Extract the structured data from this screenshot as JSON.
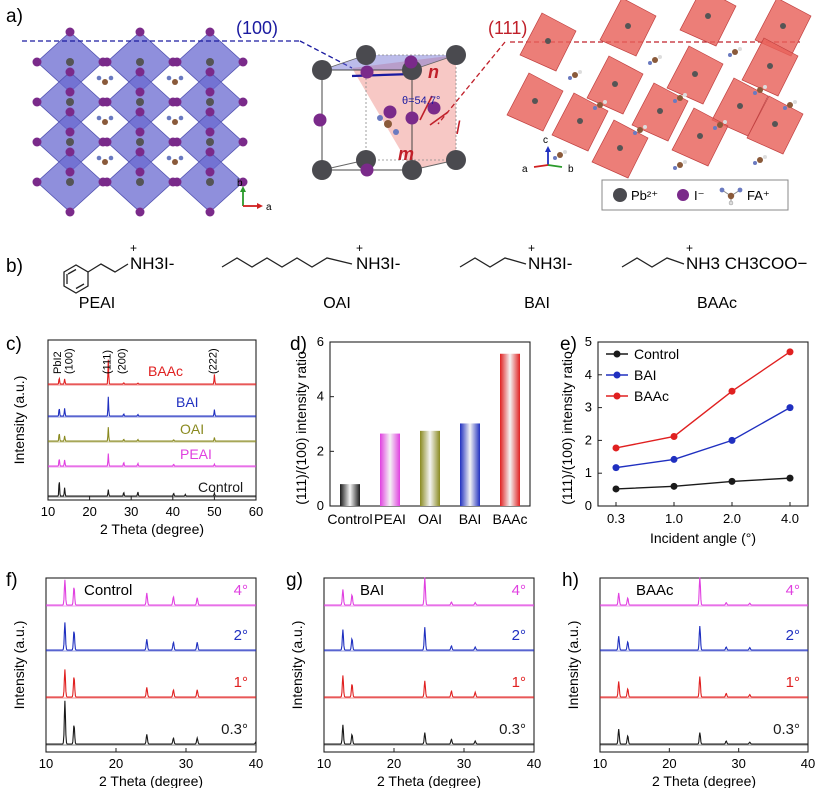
{
  "panel_labels": {
    "a": "a)",
    "b": "b)",
    "c": "c)",
    "d": "d)",
    "e": "e)",
    "f": "f)",
    "g": "g)",
    "h": "h)"
  },
  "panel_a": {
    "plane_100": "(100)",
    "plane_111": "(111)",
    "angle_label": "θ=54.7°",
    "vec_n": "n",
    "vec_m": "m",
    "vec_l": "l",
    "axes_left": {
      "b": "b",
      "a": "a"
    },
    "axes_right": {
      "c": "c",
      "a": "a",
      "b": "b"
    },
    "legend": [
      {
        "label": "Pb²⁺",
        "color": "#4a4a4f"
      },
      {
        "label": "I⁻",
        "color": "#7a2a8a"
      },
      {
        "label": "FA⁺",
        "color": "#8a5a3a"
      }
    ],
    "colors": {
      "oct_100": "#6a6ad0",
      "oct_111": "#e8625a",
      "plane100_line": "#1a1aa0",
      "plane111_line": "#c0202a"
    }
  },
  "panel_b": {
    "molecules": [
      {
        "name": "PEAI",
        "formula": "NH3I-"
      },
      {
        "name": "OAI",
        "formula": "NH3I-"
      },
      {
        "name": "BAI",
        "formula": "NH3I-"
      },
      {
        "name": "BAAc",
        "formula": "NH3 CH3COO−"
      }
    ]
  },
  "chart_data": [
    {
      "id": "c",
      "type": "line",
      "xlabel": "2 Theta (degree)",
      "ylabel": "Intensity (a.u.)",
      "xlim": [
        10,
        60
      ],
      "xticks": [
        10,
        20,
        30,
        40,
        50,
        60
      ],
      "peak_labels": [
        "PbI2",
        "(100)",
        "(111)",
        "(200)",
        "(222)"
      ],
      "series": [
        {
          "name": "Control",
          "color": "#1a1a1a",
          "peaks": [
            [
              12.7,
              5.1
            ],
            [
              14.0,
              2.6
            ],
            [
              24.5,
              2.0
            ],
            [
              28.2,
              1.2
            ],
            [
              31.6,
              1.3
            ],
            [
              40.2,
              0.9
            ],
            [
              43.0,
              0.5
            ],
            [
              50.0,
              0.9
            ]
          ]
        },
        {
          "name": "PEAI",
          "color": "#e040e0",
          "peaks": [
            [
              12.7,
              2.4
            ],
            [
              14.0,
              1.9
            ],
            [
              24.5,
              3.9
            ],
            [
              28.2,
              1.2
            ],
            [
              31.6,
              0.8
            ],
            [
              40.2,
              0.6
            ],
            [
              50.0,
              0.6
            ]
          ]
        },
        {
          "name": "OAI",
          "color": "#8a8a20",
          "peaks": [
            [
              12.7,
              2.6
            ],
            [
              14.0,
              1.6
            ],
            [
              24.5,
              4.3
            ],
            [
              28.2,
              0.6
            ],
            [
              31.6,
              0.5
            ],
            [
              40.2,
              0.4
            ],
            [
              50.0,
              1.1
            ]
          ]
        },
        {
          "name": "BAI",
          "color": "#2030c0",
          "peaks": [
            [
              12.7,
              2.6
            ],
            [
              14.0,
              2.4
            ],
            [
              24.5,
              6.0
            ],
            [
              28.2,
              0.7
            ],
            [
              31.6,
              0.5
            ],
            [
              50.0,
              2.0
            ]
          ]
        },
        {
          "name": "BAAc",
          "color": "#e02020",
          "peaks": [
            [
              12.7,
              2.0
            ],
            [
              14.0,
              1.6
            ],
            [
              24.5,
              7.6
            ],
            [
              28.2,
              0.4
            ],
            [
              31.6,
              0.3
            ],
            [
              50.0,
              3.0
            ]
          ]
        }
      ]
    },
    {
      "id": "d",
      "type": "bar",
      "ylabel": "(111)/(100) intensity ratio",
      "categories": [
        "Control",
        "PEAI",
        "OAI",
        "BAI",
        "BAAc"
      ],
      "values": [
        0.8,
        2.65,
        2.75,
        3.02,
        5.57
      ],
      "ylim": [
        0,
        6
      ],
      "yticks": [
        0,
        2,
        4,
        6
      ],
      "colors": [
        "#1a1a1a",
        "#e040e0",
        "#8a8a20",
        "#2030c0",
        "#e02020"
      ]
    },
    {
      "id": "e",
      "type": "line",
      "ylabel": "(111)/(100) intensity ratio",
      "xlabel": "Incident angle (°)",
      "categories": [
        "0.3",
        "1.0",
        "2.0",
        "4.0"
      ],
      "ylim": [
        0,
        5
      ],
      "yticks": [
        0,
        1,
        2,
        3,
        4,
        5
      ],
      "series": [
        {
          "name": "Control",
          "color": "#1a1a1a",
          "values": [
            0.52,
            0.6,
            0.75,
            0.85
          ]
        },
        {
          "name": "BAI",
          "color": "#2030c0",
          "values": [
            1.17,
            1.42,
            2.0,
            3.0
          ]
        },
        {
          "name": "BAAc",
          "color": "#e02020",
          "values": [
            1.77,
            2.12,
            3.5,
            4.7
          ]
        }
      ]
    },
    {
      "id": "f",
      "type": "line",
      "title": "Control",
      "xlabel": "2 Theta (degree)",
      "ylabel": "Intensity (a.u.)",
      "xlim": [
        10,
        40
      ],
      "xticks": [
        10,
        20,
        30,
        40
      ],
      "series": [
        {
          "name": "0.3°",
          "color": "#1a1a1a",
          "peaks": [
            [
              12.7,
              7.2
            ],
            [
              14.0,
              3.2
            ],
            [
              24.4,
              1.6
            ],
            [
              28.2,
              1.0
            ],
            [
              31.6,
              1.0
            ],
            [
              40.0,
              0.4
            ]
          ]
        },
        {
          "name": "1°",
          "color": "#e02020",
          "peaks": [
            [
              12.7,
              4.6
            ],
            [
              14.0,
              3.4
            ],
            [
              24.4,
              1.6
            ],
            [
              28.2,
              1.2
            ],
            [
              31.6,
              1.2
            ]
          ]
        },
        {
          "name": "2°",
          "color": "#2030c0",
          "peaks": [
            [
              12.7,
              4.6
            ],
            [
              14.0,
              3.2
            ],
            [
              24.4,
              1.8
            ],
            [
              28.2,
              1.3
            ],
            [
              31.6,
              1.3
            ]
          ]
        },
        {
          "name": "4°",
          "color": "#e040e0",
          "peaks": [
            [
              12.7,
              4.2
            ],
            [
              14.0,
              3.0
            ],
            [
              24.4,
              2.0
            ],
            [
              28.2,
              1.4
            ],
            [
              31.6,
              1.2
            ]
          ]
        }
      ]
    },
    {
      "id": "g",
      "type": "line",
      "title": "BAI",
      "xlabel": "2 Theta (degree)",
      "ylabel": "Intensity (a.u.)",
      "xlim": [
        10,
        40
      ],
      "xticks": [
        10,
        20,
        30,
        40
      ],
      "series": [
        {
          "name": "0.3°",
          "color": "#1a1a1a",
          "peaks": [
            [
              12.7,
              3.2
            ],
            [
              14.0,
              1.6
            ],
            [
              24.4,
              1.9
            ],
            [
              28.2,
              0.8
            ],
            [
              31.6,
              0.5
            ]
          ]
        },
        {
          "name": "1°",
          "color": "#e02020",
          "peaks": [
            [
              12.7,
              3.6
            ],
            [
              14.0,
              2.2
            ],
            [
              24.4,
              2.7
            ],
            [
              28.2,
              1.0
            ],
            [
              31.6,
              0.8
            ]
          ]
        },
        {
          "name": "2°",
          "color": "#2030c0",
          "peaks": [
            [
              12.7,
              3.4
            ],
            [
              14.0,
              1.9
            ],
            [
              24.4,
              3.8
            ],
            [
              28.2,
              0.7
            ],
            [
              31.6,
              0.5
            ]
          ]
        },
        {
          "name": "4°",
          "color": "#e040e0",
          "peaks": [
            [
              12.7,
              2.6
            ],
            [
              14.0,
              1.7
            ],
            [
              24.4,
              4.6
            ],
            [
              28.2,
              0.5
            ],
            [
              31.6,
              0.4
            ]
          ]
        }
      ]
    },
    {
      "id": "h",
      "type": "line",
      "title": "BAAc",
      "xlabel": "2 Theta (degree)",
      "ylabel": "Intensity (a.u.)",
      "xlim": [
        10,
        40
      ],
      "xticks": [
        10,
        20,
        30,
        40
      ],
      "series": [
        {
          "name": "0.3°",
          "color": "#1a1a1a",
          "peaks": [
            [
              12.7,
              2.5
            ],
            [
              14.0,
              1.4
            ],
            [
              24.4,
              1.9
            ],
            [
              28.2,
              0.5
            ],
            [
              31.6,
              0.3
            ]
          ]
        },
        {
          "name": "1°",
          "color": "#e02020",
          "peaks": [
            [
              12.7,
              2.6
            ],
            [
              14.0,
              1.4
            ],
            [
              24.4,
              3.4
            ],
            [
              28.2,
              0.6
            ],
            [
              31.6,
              0.4
            ]
          ]
        },
        {
          "name": "2°",
          "color": "#2030c0",
          "peaks": [
            [
              12.7,
              2.3
            ],
            [
              14.0,
              1.4
            ],
            [
              24.4,
              4.0
            ],
            [
              28.2,
              0.5
            ],
            [
              31.6,
              0.4
            ]
          ]
        },
        {
          "name": "4°",
          "color": "#e040e0",
          "peaks": [
            [
              12.7,
              2.0
            ],
            [
              14.0,
              1.2
            ],
            [
              24.4,
              4.6
            ],
            [
              28.2,
              0.4
            ],
            [
              31.6,
              0.3
            ]
          ]
        }
      ]
    }
  ]
}
